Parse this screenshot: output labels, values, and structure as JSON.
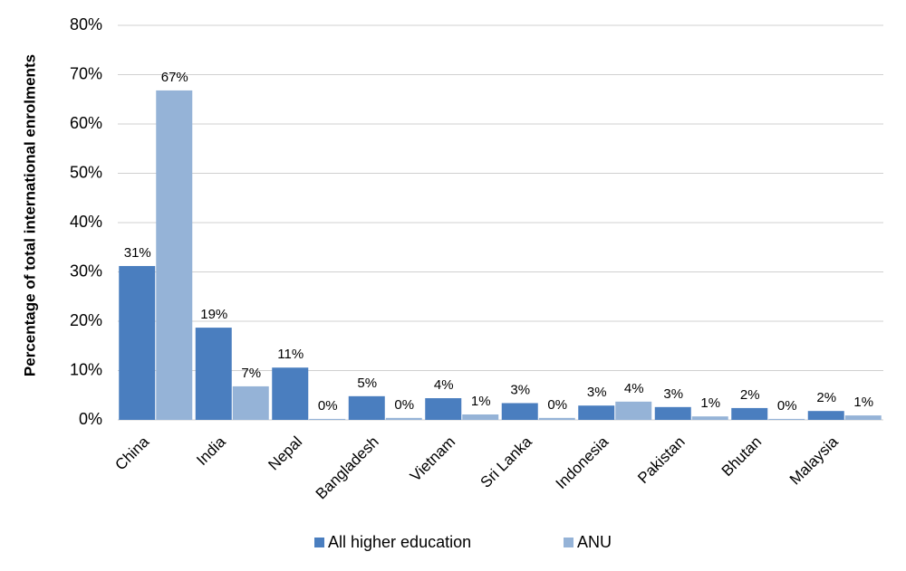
{
  "chart_data": {
    "type": "bar",
    "y_label": "Percentage of total international enrolments",
    "categories": [
      "China",
      "India",
      "Nepal",
      "Bangladesh",
      "Vietnam",
      "Sri Lanka",
      "Indonesia",
      "Pakistan",
      "Bhutan",
      "Malaysia"
    ],
    "series": [
      {
        "name": "All higher education",
        "color": "#4a7ebf",
        "values": [
          31.2,
          18.7,
          10.6,
          4.8,
          4.4,
          3.4,
          2.9,
          2.6,
          2.4,
          1.8
        ],
        "value_labels": [
          "31%",
          "19%",
          "11%",
          "5%",
          "4%",
          "3%",
          "3%",
          "3%",
          "2%",
          "2%"
        ]
      },
      {
        "name": "ANU",
        "color": "#95b3d7",
        "values": [
          66.8,
          6.8,
          0.2,
          0.4,
          1.1,
          0.4,
          3.7,
          0.7,
          0.2,
          0.9
        ],
        "value_labels": [
          "67%",
          "7%",
          "0%",
          "0%",
          "1%",
          "0%",
          "4%",
          "1%",
          "0%",
          "1%"
        ]
      }
    ],
    "ylim": [
      0,
      80
    ],
    "yticks": [
      {
        "value": 0,
        "label": "0%"
      },
      {
        "value": 10,
        "label": "10%"
      },
      {
        "value": 20,
        "label": "20%"
      },
      {
        "value": 30,
        "label": "30%"
      },
      {
        "value": 40,
        "label": "40%"
      },
      {
        "value": 50,
        "label": "50%"
      },
      {
        "value": 60,
        "label": "60%"
      },
      {
        "value": 70,
        "label": "70%"
      },
      {
        "value": 80,
        "label": "80%"
      }
    ],
    "grid": true,
    "legend": "bottom"
  }
}
